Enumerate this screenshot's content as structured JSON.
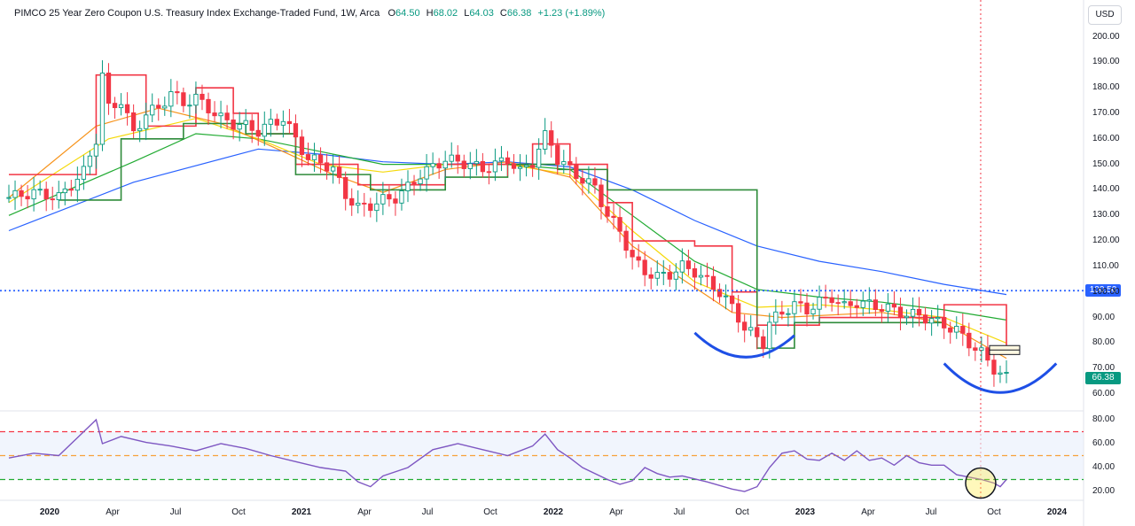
{
  "legend": {
    "name": "PIMCO 25 Year Zero Coupon U.S. Treasury Index Exchange-Traded Fund, 1W, Arca",
    "o_label": "O",
    "o_value": "64.50",
    "h_label": "H",
    "h_value": "68.02",
    "l_label": "L",
    "l_value": "64.03",
    "c_label": "C",
    "c_value": "66.38",
    "change": "+1.23 (+1.89%)"
  },
  "currency_button": "USD",
  "price_tags": {
    "hline": "100.50",
    "last": "66.38"
  },
  "colors": {
    "up": "#089981",
    "down": "#f23645",
    "rsi": "#7e57c2",
    "hline": "#2962ff",
    "arc": "#1e4fe6"
  },
  "chart_data": [
    {
      "type": "candlestick",
      "ylim": [
        58,
        204
      ],
      "y_ticks": [
        "200.00",
        "190.00",
        "180.00",
        "170.00",
        "160.00",
        "150.00",
        "140.00",
        "130.00",
        "120.00",
        "110.00",
        "100.00",
        "90.00",
        "80.00",
        "70.00",
        "60.00"
      ],
      "x_ticks": [
        {
          "label": "2020",
          "year": true
        },
        {
          "label": "Apr"
        },
        {
          "label": "Jul"
        },
        {
          "label": "Oct"
        },
        {
          "label": "2021",
          "year": true
        },
        {
          "label": "Apr"
        },
        {
          "label": "Jul"
        },
        {
          "label": "Oct"
        },
        {
          "label": "2022",
          "year": true
        },
        {
          "label": "Apr"
        },
        {
          "label": "Jul"
        },
        {
          "label": "Oct"
        },
        {
          "label": "2023",
          "year": true
        },
        {
          "label": "Apr"
        },
        {
          "label": "Jul"
        },
        {
          "label": "Oct"
        },
        {
          "label": "2024",
          "year": true
        }
      ],
      "horizontal_line": 100.5,
      "last_close": 66.38,
      "close_path": [
        [
          0,
          137
        ],
        [
          4,
          139
        ],
        [
          8,
          137
        ],
        [
          12,
          147
        ],
        [
          14,
          160
        ],
        [
          15,
          185
        ],
        [
          16,
          172
        ],
        [
          18,
          175
        ],
        [
          20,
          162
        ],
        [
          22,
          170
        ],
        [
          24,
          172
        ],
        [
          26,
          178
        ],
        [
          28,
          174
        ],
        [
          30,
          176
        ],
        [
          32,
          172
        ],
        [
          34,
          168
        ],
        [
          36,
          166
        ],
        [
          38,
          165
        ],
        [
          40,
          163
        ],
        [
          42,
          166
        ],
        [
          44,
          168
        ],
        [
          46,
          160
        ],
        [
          48,
          152
        ],
        [
          50,
          151
        ],
        [
          52,
          148
        ],
        [
          54,
          138
        ],
        [
          56,
          133
        ],
        [
          58,
          134
        ],
        [
          60,
          136
        ],
        [
          62,
          137
        ],
        [
          64,
          141
        ],
        [
          66,
          146
        ],
        [
          68,
          149
        ],
        [
          70,
          152
        ],
        [
          72,
          151
        ],
        [
          74,
          150
        ],
        [
          76,
          148
        ],
        [
          78,
          150
        ],
        [
          80,
          152
        ],
        [
          82,
          147
        ],
        [
          84,
          151
        ],
        [
          86,
          161
        ],
        [
          87,
          158
        ],
        [
          88,
          152
        ],
        [
          90,
          148
        ],
        [
          92,
          144
        ],
        [
          94,
          141
        ],
        [
          96,
          130
        ],
        [
          98,
          124
        ],
        [
          100,
          113
        ],
        [
          102,
          108
        ],
        [
          104,
          106
        ],
        [
          106,
          107
        ],
        [
          108,
          110
        ],
        [
          110,
          108
        ],
        [
          112,
          104
        ],
        [
          114,
          100
        ],
        [
          116,
          94
        ],
        [
          118,
          86
        ],
        [
          120,
          82
        ],
        [
          121,
          80
        ],
        [
          122,
          88
        ],
        [
          124,
          92
        ],
        [
          126,
          95
        ],
        [
          128,
          93
        ],
        [
          130,
          96
        ],
        [
          132,
          98
        ],
        [
          134,
          94
        ],
        [
          136,
          96
        ],
        [
          138,
          95
        ],
        [
          140,
          94
        ],
        [
          142,
          93
        ],
        [
          144,
          91
        ],
        [
          146,
          91
        ],
        [
          148,
          89
        ],
        [
          150,
          87
        ],
        [
          152,
          85
        ],
        [
          154,
          80
        ],
        [
          156,
          76
        ],
        [
          158,
          70
        ],
        [
          159,
          68
        ],
        [
          160,
          66.38
        ]
      ],
      "trailing_stop_red": [
        [
          0,
          146
        ],
        [
          10,
          146
        ],
        [
          14,
          185
        ],
        [
          22,
          165
        ],
        [
          30,
          180
        ],
        [
          36,
          170
        ],
        [
          40,
          162
        ],
        [
          46,
          150
        ],
        [
          56,
          142
        ],
        [
          70,
          150
        ],
        [
          84,
          158
        ],
        [
          90,
          150
        ],
        [
          96,
          135
        ],
        [
          100,
          120
        ],
        [
          110,
          118
        ],
        [
          116,
          100
        ],
        [
          120,
          87
        ],
        [
          130,
          90
        ],
        [
          150,
          95
        ],
        [
          160,
          76
        ]
      ],
      "trailing_stop_green": [
        [
          8,
          136
        ],
        [
          18,
          160
        ],
        [
          28,
          166
        ],
        [
          38,
          162
        ],
        [
          46,
          146
        ],
        [
          58,
          140
        ],
        [
          70,
          145
        ],
        [
          80,
          150
        ],
        [
          88,
          148
        ],
        [
          96,
          140
        ],
        [
          120,
          78
        ],
        [
          126,
          88
        ],
        [
          140,
          88
        ],
        [
          150,
          88
        ]
      ],
      "ma_blue": [
        [
          0,
          124
        ],
        [
          20,
          143
        ],
        [
          40,
          156
        ],
        [
          50,
          154
        ],
        [
          60,
          151
        ],
        [
          70,
          150
        ],
        [
          80,
          151
        ],
        [
          90,
          149
        ],
        [
          100,
          140
        ],
        [
          110,
          128
        ],
        [
          120,
          118
        ],
        [
          130,
          112
        ],
        [
          140,
          108
        ],
        [
          150,
          103
        ],
        [
          160,
          99
        ]
      ],
      "ma_green": [
        [
          0,
          130
        ],
        [
          20,
          151
        ],
        [
          30,
          162
        ],
        [
          40,
          160
        ],
        [
          50,
          155
        ],
        [
          60,
          150
        ],
        [
          70,
          150
        ],
        [
          80,
          150
        ],
        [
          90,
          148
        ],
        [
          100,
          130
        ],
        [
          110,
          112
        ],
        [
          120,
          101
        ],
        [
          130,
          98
        ],
        [
          140,
          96
        ],
        [
          150,
          93
        ],
        [
          160,
          89
        ]
      ],
      "ma_yellow": [
        [
          0,
          135
        ],
        [
          16,
          160
        ],
        [
          30,
          168
        ],
        [
          40,
          160
        ],
        [
          50,
          150
        ],
        [
          60,
          147
        ],
        [
          70,
          150
        ],
        [
          80,
          150
        ],
        [
          90,
          146
        ],
        [
          100,
          124
        ],
        [
          110,
          104
        ],
        [
          120,
          94
        ],
        [
          130,
          95
        ],
        [
          140,
          93
        ],
        [
          150,
          90
        ],
        [
          160,
          80
        ]
      ],
      "ma_orange": [
        [
          0,
          137
        ],
        [
          14,
          165
        ],
        [
          24,
          172
        ],
        [
          34,
          166
        ],
        [
          44,
          155
        ],
        [
          52,
          146
        ],
        [
          60,
          139
        ],
        [
          70,
          148
        ],
        [
          80,
          151
        ],
        [
          90,
          145
        ],
        [
          100,
          118
        ],
        [
          108,
          105
        ],
        [
          116,
          92
        ],
        [
          124,
          90
        ],
        [
          140,
          92
        ],
        [
          150,
          88
        ],
        [
          160,
          74
        ]
      ],
      "arc_left": {
        "from": [
          110,
          84
        ],
        "to": [
          126,
          83
        ],
        "bottom": 74
      },
      "arc_right": {
        "from": [
          150,
          72
        ],
        "to": [
          168,
          72
        ],
        "bottom": 60
      },
      "buy_box": {
        "x": 159,
        "y_low": 75.5,
        "y_high": 79
      }
    },
    {
      "type": "line",
      "ylim": [
        12,
        84
      ],
      "y_ticks": [
        "80.00",
        "60.00",
        "40.00",
        "20.00"
      ],
      "levels": [
        70,
        50,
        30
      ],
      "values": [
        [
          0,
          48
        ],
        [
          4,
          52
        ],
        [
          8,
          50
        ],
        [
          12,
          70
        ],
        [
          14,
          80
        ],
        [
          15,
          60
        ],
        [
          18,
          66
        ],
        [
          22,
          61
        ],
        [
          26,
          58
        ],
        [
          30,
          54
        ],
        [
          34,
          60
        ],
        [
          38,
          56
        ],
        [
          42,
          50
        ],
        [
          46,
          45
        ],
        [
          50,
          40
        ],
        [
          54,
          37
        ],
        [
          56,
          28
        ],
        [
          58,
          24
        ],
        [
          60,
          33
        ],
        [
          64,
          40
        ],
        [
          68,
          55
        ],
        [
          72,
          60
        ],
        [
          76,
          55
        ],
        [
          80,
          50
        ],
        [
          84,
          58
        ],
        [
          86,
          68
        ],
        [
          88,
          55
        ],
        [
          90,
          48
        ],
        [
          92,
          40
        ],
        [
          94,
          35
        ],
        [
          96,
          30
        ],
        [
          98,
          26
        ],
        [
          100,
          29
        ],
        [
          102,
          40
        ],
        [
          104,
          35
        ],
        [
          106,
          32
        ],
        [
          108,
          33
        ],
        [
          112,
          28
        ],
        [
          116,
          22
        ],
        [
          118,
          20
        ],
        [
          120,
          24
        ],
        [
          122,
          40
        ],
        [
          124,
          52
        ],
        [
          126,
          54
        ],
        [
          128,
          47
        ],
        [
          130,
          46
        ],
        [
          132,
          52
        ],
        [
          134,
          46
        ],
        [
          136,
          54
        ],
        [
          138,
          46
        ],
        [
          140,
          48
        ],
        [
          142,
          42
        ],
        [
          144,
          50
        ],
        [
          146,
          44
        ],
        [
          148,
          42
        ],
        [
          150,
          42
        ],
        [
          152,
          34
        ],
        [
          154,
          32
        ],
        [
          156,
          30
        ],
        [
          158,
          27
        ],
        [
          159,
          24
        ],
        [
          160,
          30
        ]
      ],
      "highlight_circle": {
        "x": 159,
        "y": 27
      }
    }
  ]
}
